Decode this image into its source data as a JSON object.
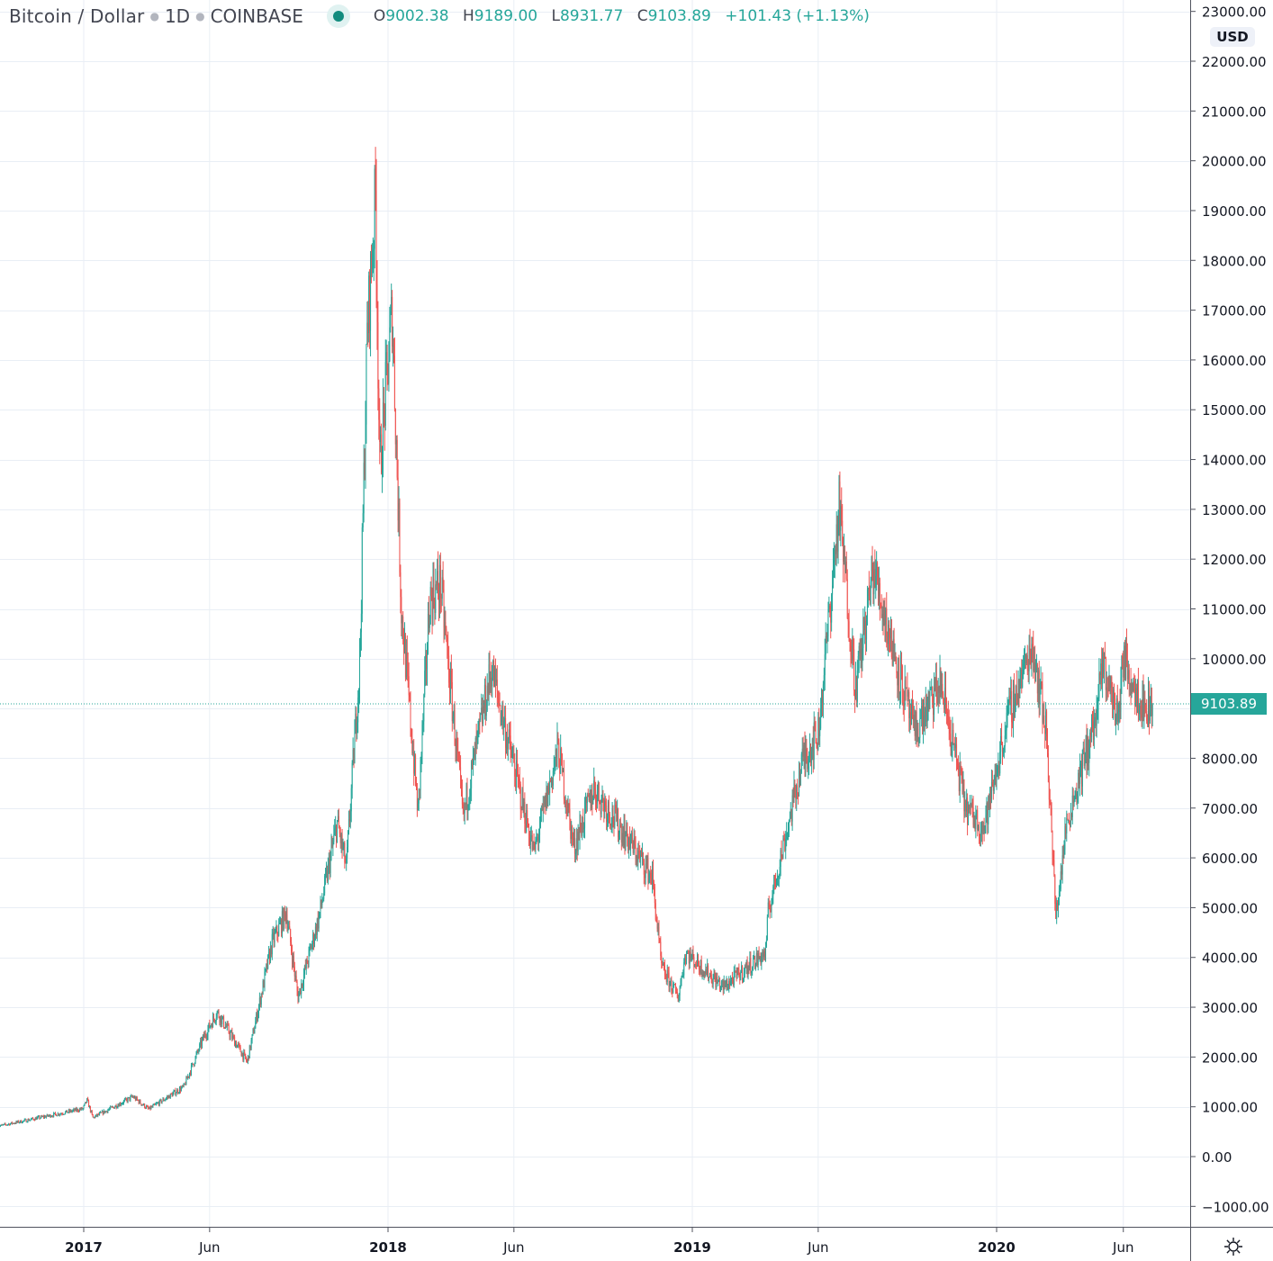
{
  "header": {
    "symbol": "Bitcoin / Dollar",
    "interval": "1D",
    "exchange": "COINBASE",
    "open_label": "O",
    "open": "9002.38",
    "high_label": "H",
    "high": "9189.00",
    "low_label": "L",
    "low": "8931.77",
    "close_label": "C",
    "close": "9103.89",
    "change": "+101.43 (+1.13%)"
  },
  "currency_badge": "USD",
  "last_price_label": "9103.89",
  "icons": {
    "status": "market-status-dot",
    "settings": "gear-icon"
  },
  "colors": {
    "up": "#26a69a",
    "down": "#ef5350",
    "grid": "#e9eef5",
    "last_price": "#26a69a"
  },
  "chart_data": {
    "type": "candlestick",
    "title": "Bitcoin / Dollar · 1D · COINBASE",
    "interval": "1D",
    "ylim": [
      -1000,
      23000
    ],
    "y_ticks": [
      "23000.00",
      "22000.00",
      "21000.00",
      "20000.00",
      "19000.00",
      "18000.00",
      "17000.00",
      "16000.00",
      "15000.00",
      "14000.00",
      "13000.00",
      "12000.00",
      "11000.00",
      "10000.00",
      "8000.00",
      "7000.00",
      "6000.00",
      "5000.00",
      "4000.00",
      "3000.00",
      "2000.00",
      "1000.00",
      "0.00",
      "−1000.00"
    ],
    "x_ticks": [
      {
        "date": "2017-01-01",
        "label": "2017",
        "bold": true
      },
      {
        "date": "2017-06-01",
        "label": "Jun"
      },
      {
        "date": "2018-01-01",
        "label": "2018",
        "bold": true
      },
      {
        "date": "2018-06-01",
        "label": "Jun"
      },
      {
        "date": "2019-01-01",
        "label": "2019",
        "bold": true
      },
      {
        "date": "2019-06-01",
        "label": "Jun"
      },
      {
        "date": "2020-01-01",
        "label": "2020",
        "bold": true
      },
      {
        "date": "2020-06-01",
        "label": "Jun"
      }
    ],
    "grid": true,
    "last_price": 9103.89,
    "approx_close_path": [
      [
        "2016-09-20",
        610
      ],
      [
        "2016-12-31",
        960
      ],
      [
        "2017-01-05",
        1130
      ],
      [
        "2017-01-12",
        780
      ],
      [
        "2017-03-01",
        1200
      ],
      [
        "2017-03-20",
        950
      ],
      [
        "2017-05-01",
        1400
      ],
      [
        "2017-05-25",
        2400
      ],
      [
        "2017-06-10",
        2900
      ],
      [
        "2017-07-16",
        1900
      ],
      [
        "2017-08-15",
        4300
      ],
      [
        "2017-09-01",
        4900
      ],
      [
        "2017-09-15",
        3200
      ],
      [
        "2017-10-10",
        4800
      ],
      [
        "2017-11-01",
        6700
      ],
      [
        "2017-11-12",
        5800
      ],
      [
        "2017-11-28",
        9900
      ],
      [
        "2017-12-07",
        16500
      ],
      [
        "2017-12-17",
        19300
      ],
      [
        "2017-12-22",
        13800
      ],
      [
        "2018-01-06",
        17000
      ],
      [
        "2018-01-17",
        11000
      ],
      [
        "2018-02-06",
        6900
      ],
      [
        "2018-02-20",
        11200
      ],
      [
        "2018-03-05",
        11500
      ],
      [
        "2018-04-01",
        6800
      ],
      [
        "2018-05-05",
        9800
      ],
      [
        "2018-06-25",
        6100
      ],
      [
        "2018-07-24",
        8200
      ],
      [
        "2018-08-12",
        6200
      ],
      [
        "2018-09-05",
        7400
      ],
      [
        "2018-10-15",
        6400
      ],
      [
        "2018-11-14",
        5600
      ],
      [
        "2018-11-25",
        3800
      ],
      [
        "2018-12-15",
        3200
      ],
      [
        "2018-12-24",
        4100
      ],
      [
        "2019-02-07",
        3400
      ],
      [
        "2019-03-30",
        4100
      ],
      [
        "2019-04-02",
        4900
      ],
      [
        "2019-05-14",
        8000
      ],
      [
        "2019-06-01",
        8500
      ],
      [
        "2019-06-26",
        13000
      ],
      [
        "2019-07-16",
        9400
      ],
      [
        "2019-08-06",
        11800
      ],
      [
        "2019-09-24",
        8500
      ],
      [
        "2019-10-26",
        9500
      ],
      [
        "2019-11-25",
        7000
      ],
      [
        "2019-12-17",
        6600
      ],
      [
        "2020-01-14",
        8800
      ],
      [
        "2020-02-13",
        10300
      ],
      [
        "2020-03-01",
        8500
      ],
      [
        "2020-03-12",
        4800
      ],
      [
        "2020-03-25",
        6700
      ],
      [
        "2020-04-29",
        8800
      ],
      [
        "2020-05-08",
        9900
      ],
      [
        "2020-05-25",
        8800
      ],
      [
        "2020-06-01",
        10000
      ],
      [
        "2020-06-27",
        9000
      ],
      [
        "2020-07-06",
        9103.89
      ]
    ]
  }
}
